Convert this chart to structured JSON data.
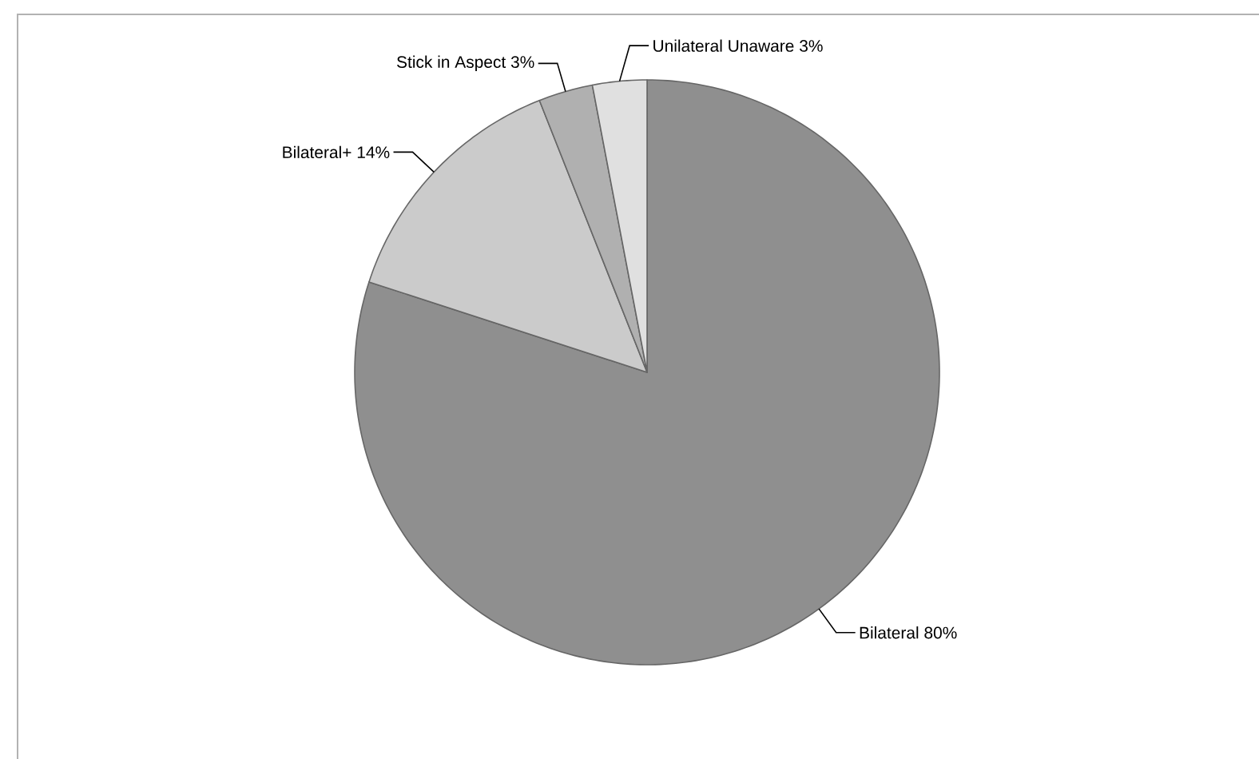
{
  "chart_data": {
    "type": "pie",
    "categories": [
      "Bilateral",
      "Bilateral+",
      "Stick in Aspect",
      "Unilateral Unaware"
    ],
    "values": [
      80,
      14,
      3,
      3
    ],
    "value_labels": [
      "80%",
      "14%",
      "3%",
      "3%"
    ],
    "colors": [
      "#8f8f8f",
      "#cbcbcb",
      "#b0b0b0",
      "#e0e0e0"
    ]
  }
}
